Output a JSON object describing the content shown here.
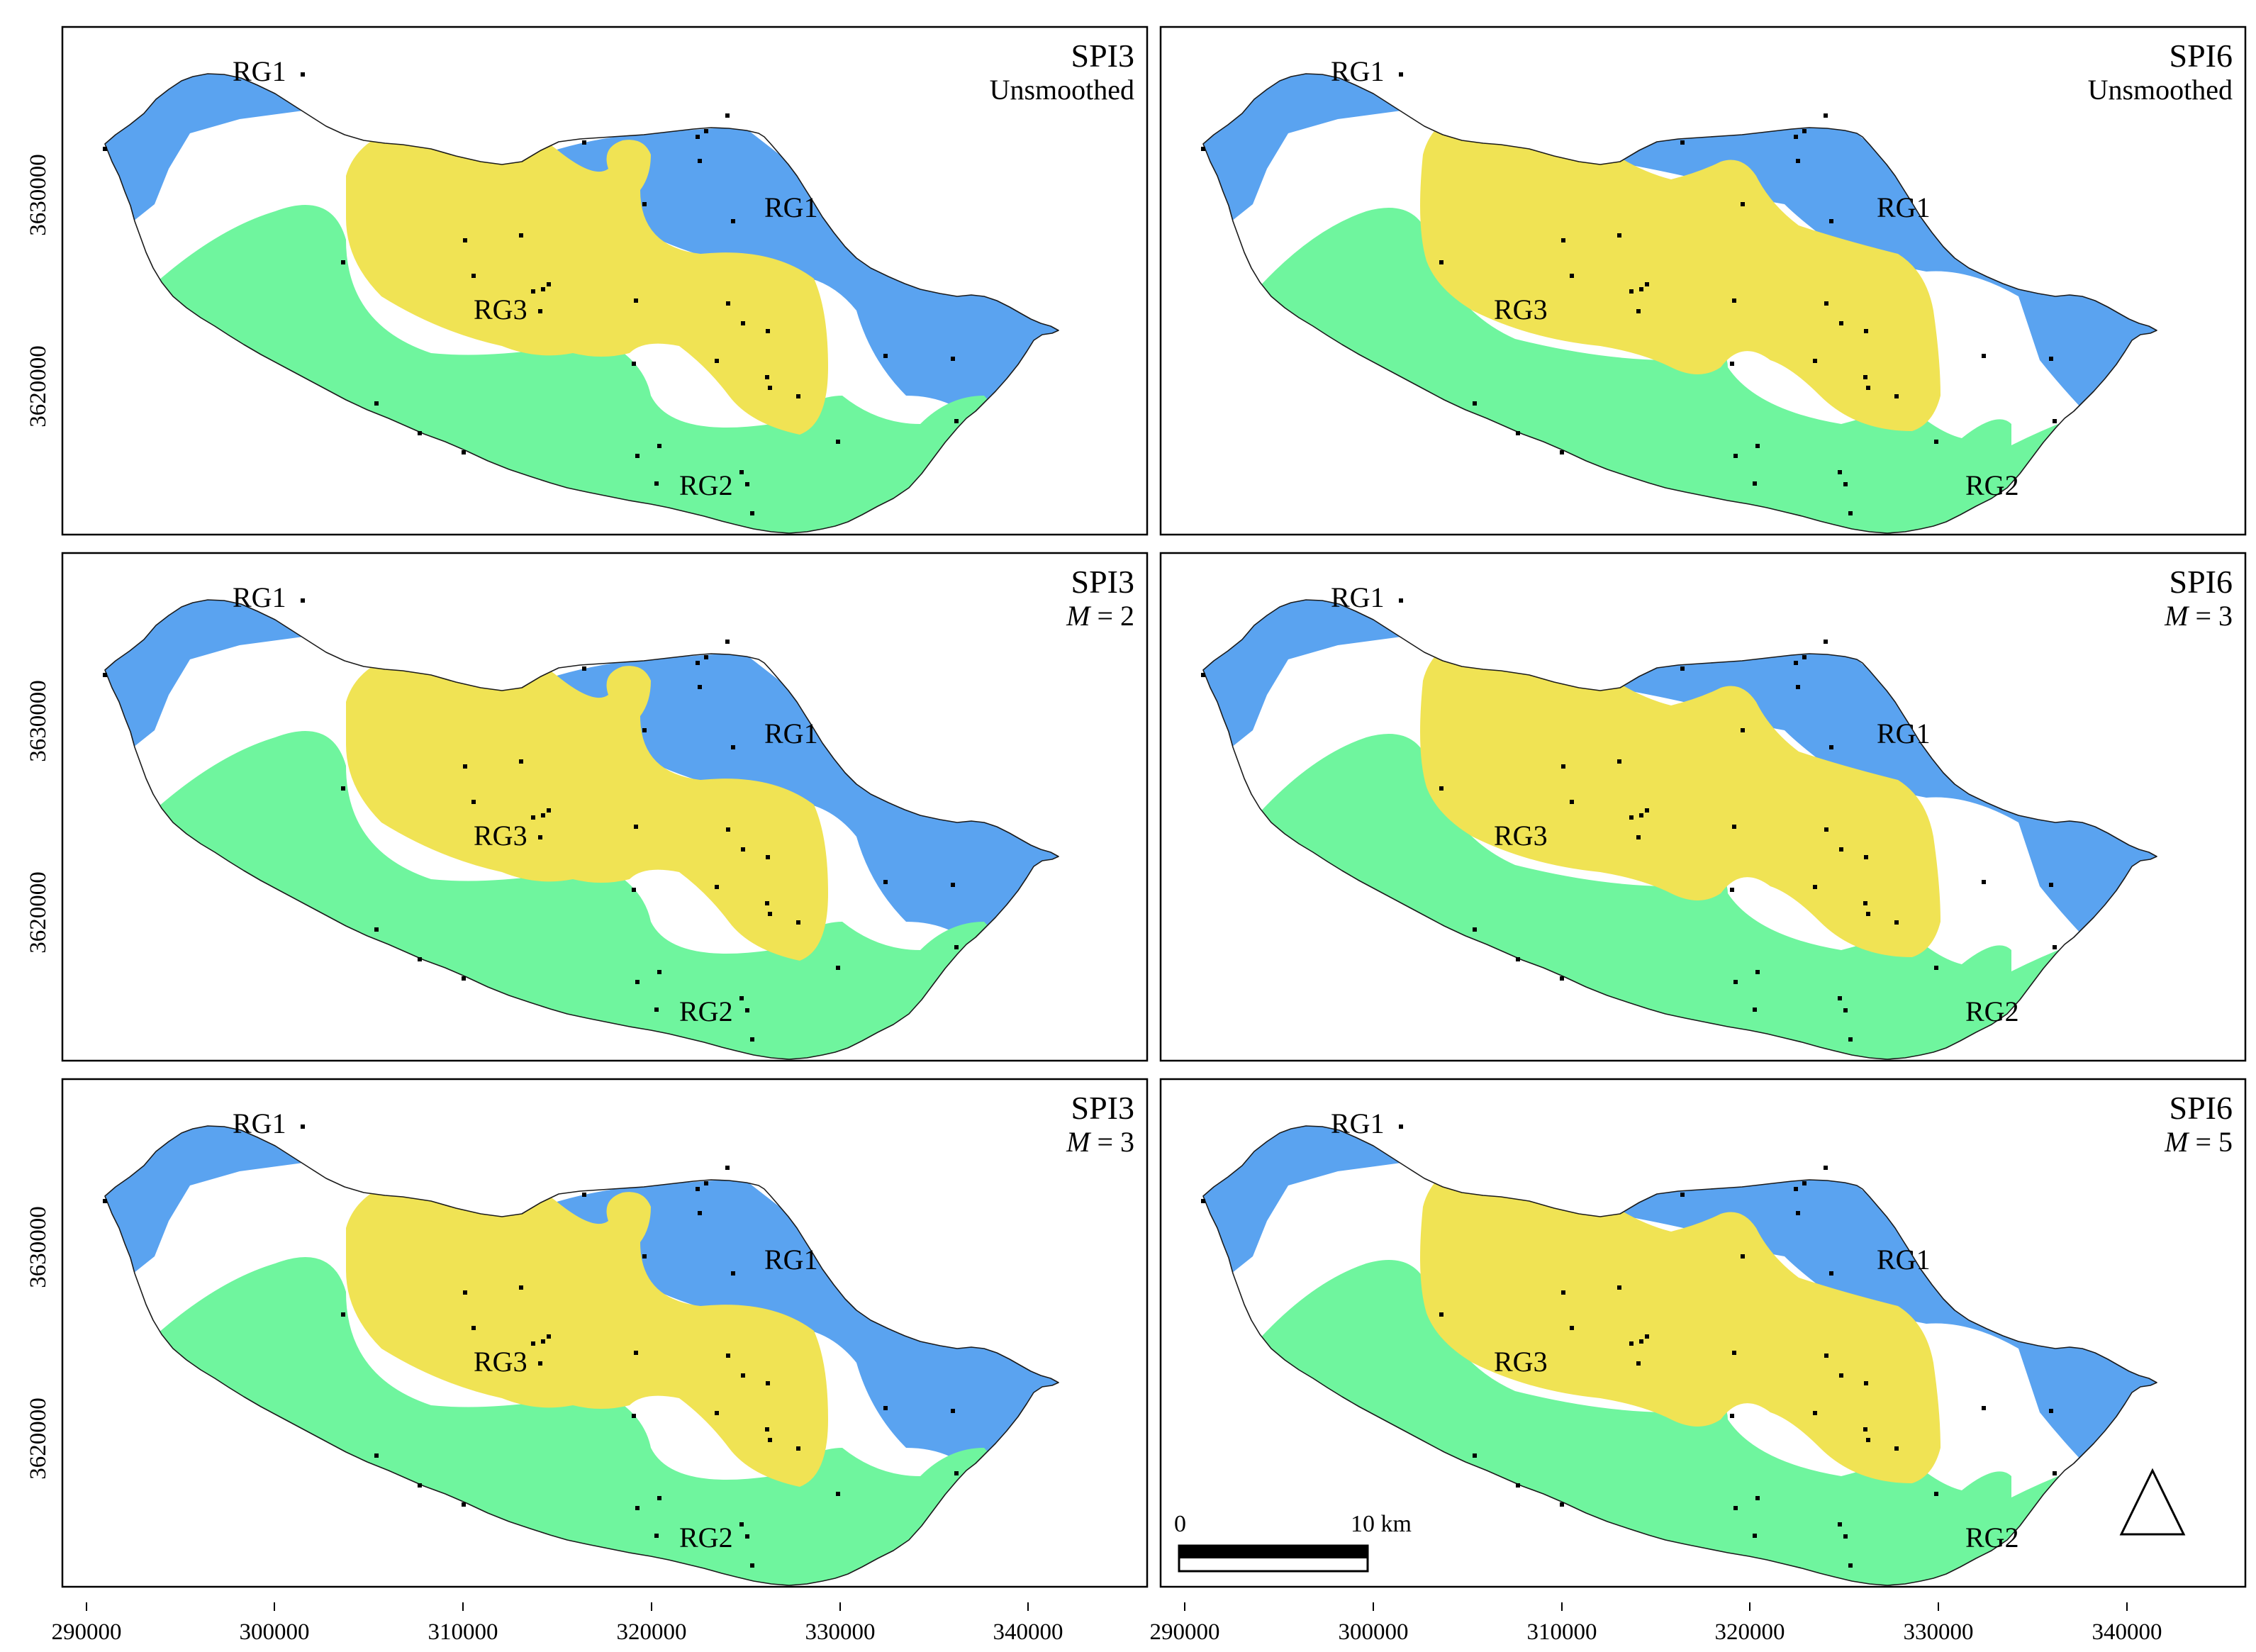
{
  "figure": {
    "x_ticks": [
      "290000",
      "300000",
      "310000",
      "320000",
      "330000",
      "340000"
    ],
    "y_ticks": [
      "3630000",
      "3620000"
    ],
    "region_labels": {
      "rg1": "RG1",
      "rg2": "RG2",
      "rg3": "RG3"
    },
    "colors": {
      "rg1": "#5aa3f0",
      "rg2": "#6ff59e",
      "rg3": "#f0e354"
    },
    "scale_bar": {
      "start": "0",
      "end": "10 km"
    },
    "north_arrow": "triangle-north-arrow-icon"
  },
  "panels": [
    {
      "title": "SPI3",
      "sub_prefix": "",
      "sub_value": "Unsmoothed",
      "variant": "spi3"
    },
    {
      "title": "SPI6",
      "sub_prefix": "",
      "sub_value": "Unsmoothed",
      "variant": "spi6"
    },
    {
      "title": "SPI3",
      "sub_prefix": "M",
      "sub_value": " = 2",
      "variant": "spi3"
    },
    {
      "title": "SPI6",
      "sub_prefix": "M",
      "sub_value": " = 3",
      "variant": "spi6"
    },
    {
      "title": "SPI3",
      "sub_prefix": "M",
      "sub_value": " = 3",
      "variant": "spi3"
    },
    {
      "title": "SPI6",
      "sub_prefix": "M",
      "sub_value": " = 5",
      "variant": "spi6"
    }
  ]
}
